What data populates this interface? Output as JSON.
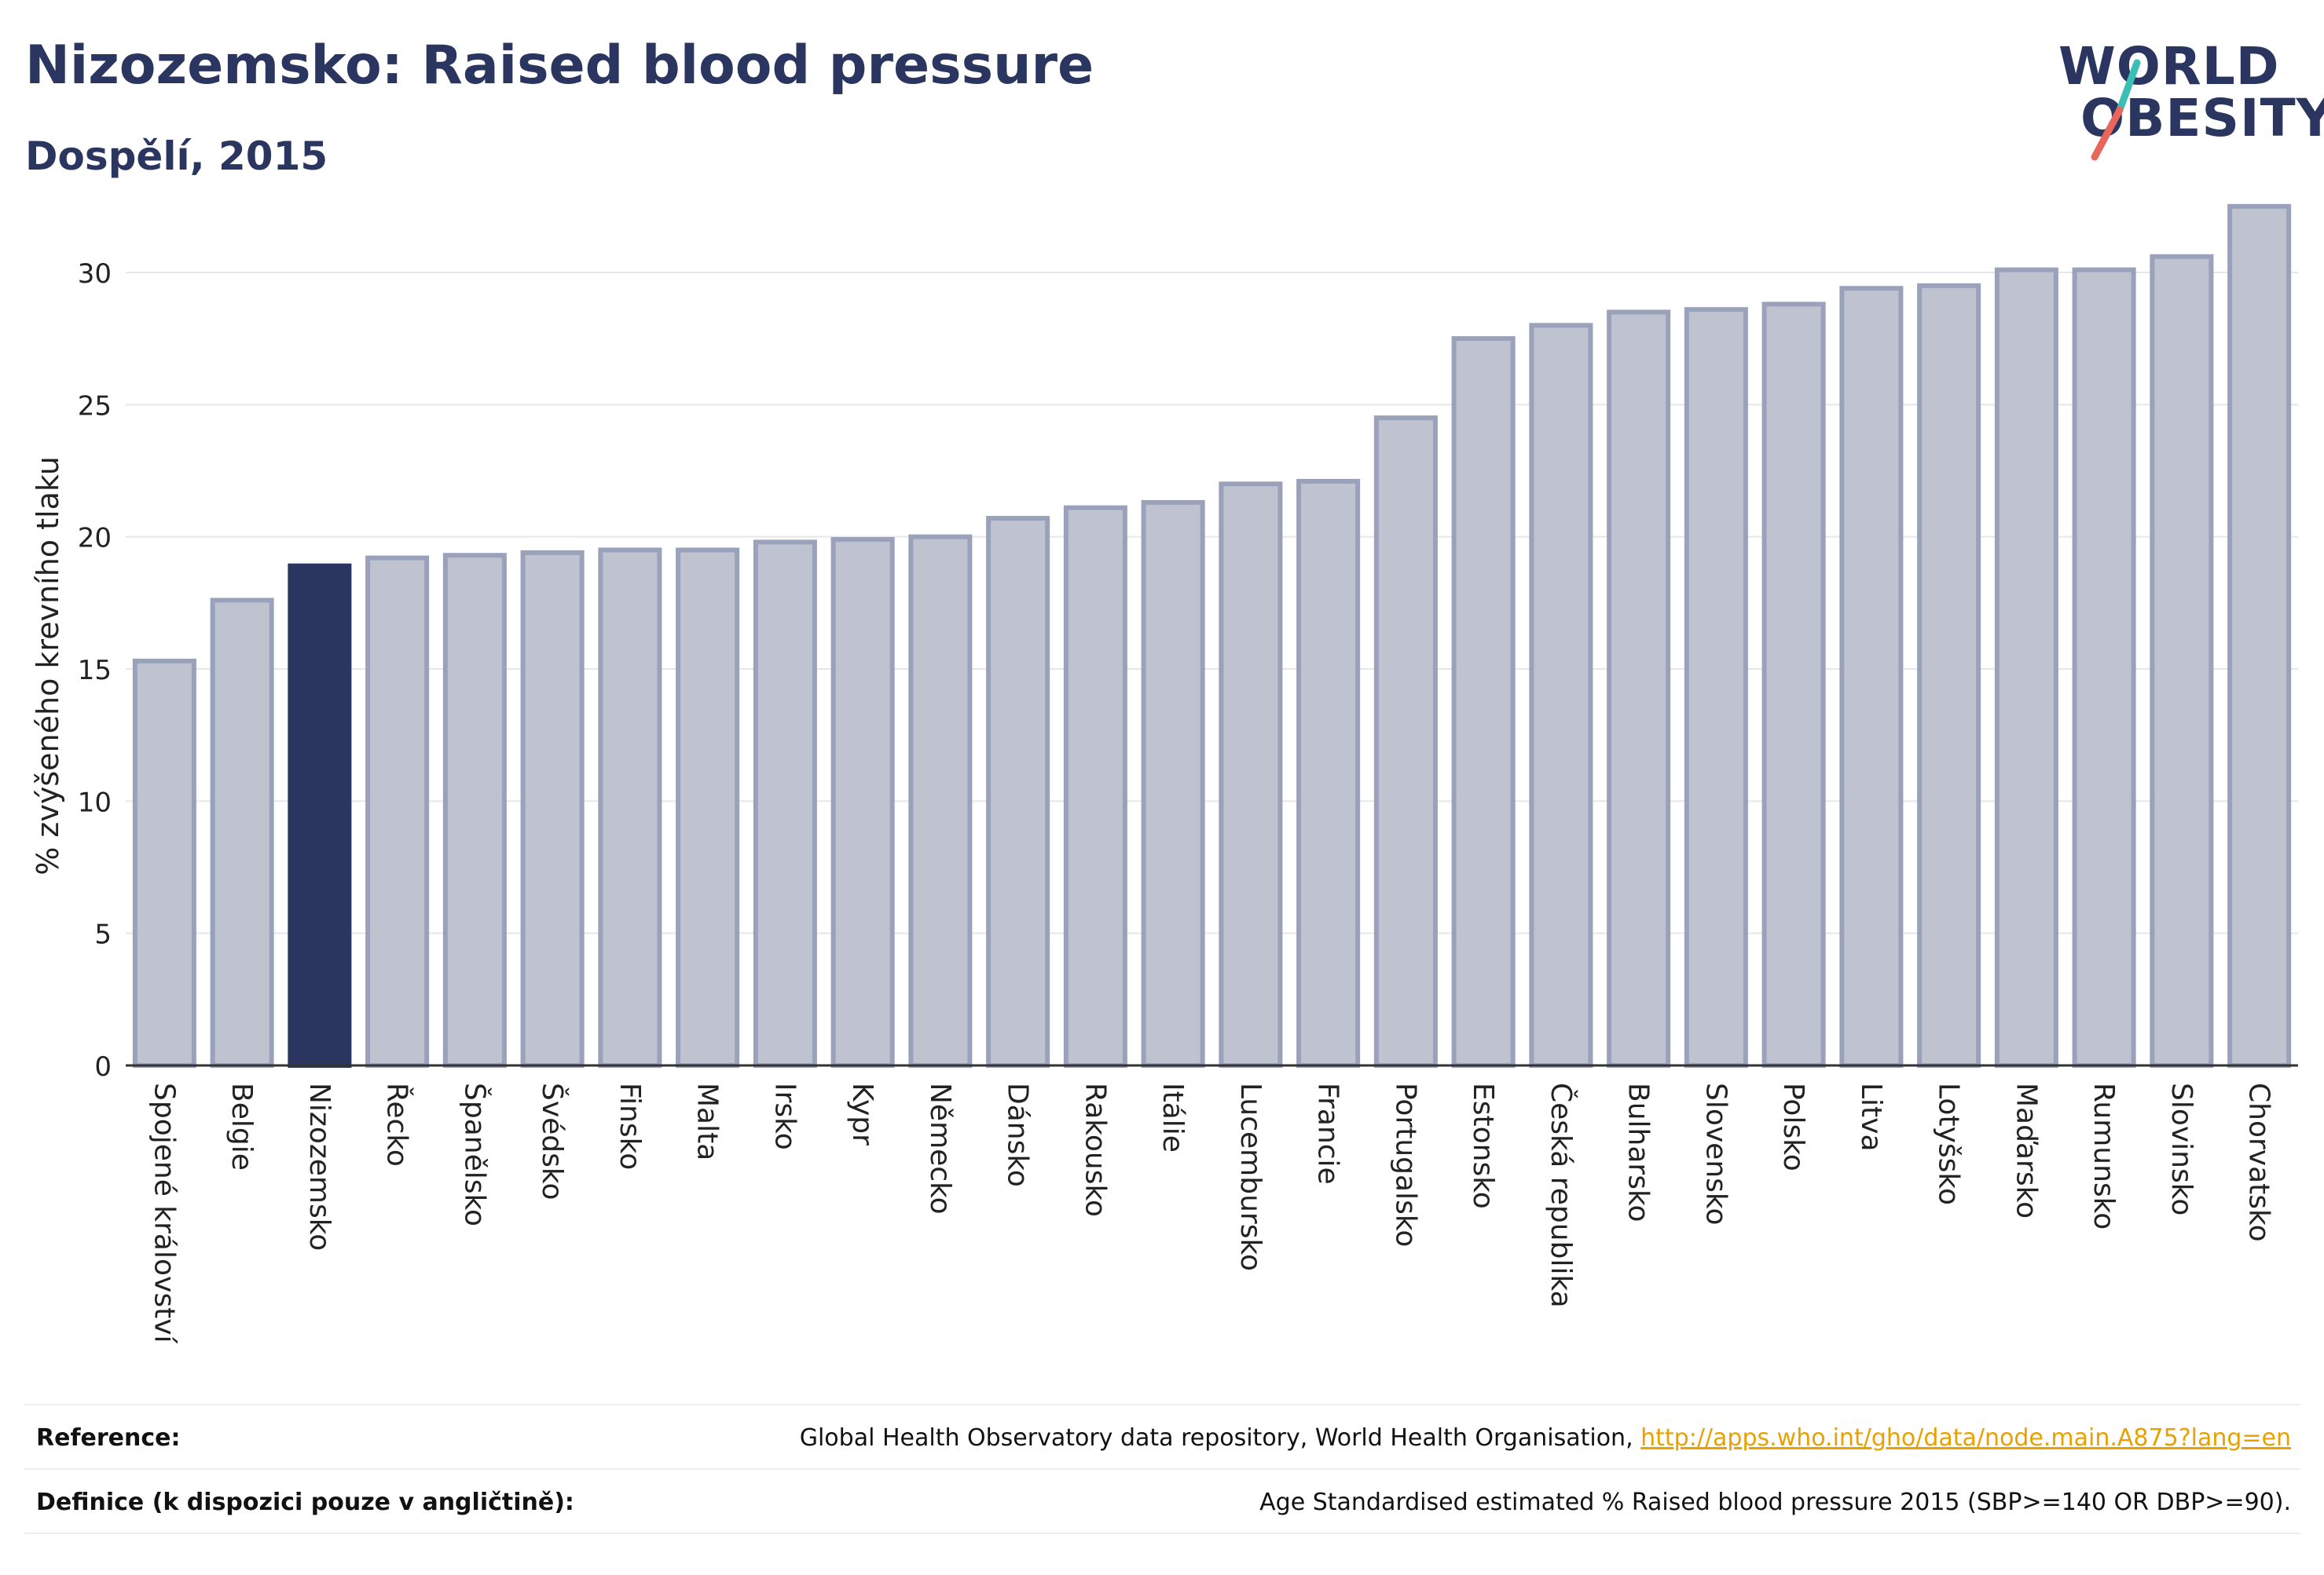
{
  "header": {
    "title": "Nizozemsko: Raised blood pressure",
    "subtitle": "Dospělí, 2015"
  },
  "logo": {
    "line1": "WORLD",
    "line2": "OBESITY",
    "accent_colors": [
      "#3bbfb4",
      "#e8675a"
    ]
  },
  "chart_data": {
    "type": "bar",
    "ylabel": "% zvýšeného krevního tlaku",
    "ylim": [
      0,
      33
    ],
    "yticks": [
      0,
      5,
      10,
      15,
      20,
      25,
      30
    ],
    "grid": true,
    "highlight": "Nizozemsko",
    "colors": {
      "bar": "#bfc3d0",
      "bar_edge": "#9aa1ba",
      "highlight": "#2a3560"
    },
    "categories": [
      "Spojené království",
      "Belgie",
      "Nizozemsko",
      "Řecko",
      "Španělsko",
      "Švédsko",
      "Finsko",
      "Malta",
      "Irsko",
      "Kypr",
      "Německo",
      "Dánsko",
      "Rakousko",
      "Itálie",
      "Lucembursko",
      "Francie",
      "Portugalsko",
      "Estonsko",
      "Česká republika",
      "Bulharsko",
      "Slovensko",
      "Polsko",
      "Litva",
      "Lotyšsko",
      "Maďarsko",
      "Rumunsko",
      "Slovinsko",
      "Chorvatsko"
    ],
    "values": [
      15.3,
      17.6,
      18.9,
      19.2,
      19.3,
      19.4,
      19.5,
      19.5,
      19.8,
      19.9,
      20.0,
      20.7,
      21.1,
      21.3,
      22.0,
      22.1,
      24.5,
      27.5,
      28.0,
      28.5,
      28.6,
      28.8,
      29.4,
      29.5,
      30.1,
      30.1,
      30.6,
      32.5
    ]
  },
  "footer": {
    "reference_label": "Reference:",
    "reference_text": "Global Health Observatory data repository, World Health Organisation, ",
    "reference_link": "http://apps.who.int/gho/data/node.main.A875?lang=en",
    "definition_label": "Definice (k dispozici pouze v angličtině):",
    "definition_text": "Age Standardised estimated % Raised blood pressure 2015 (SBP>=140 OR DBP>=90)."
  }
}
